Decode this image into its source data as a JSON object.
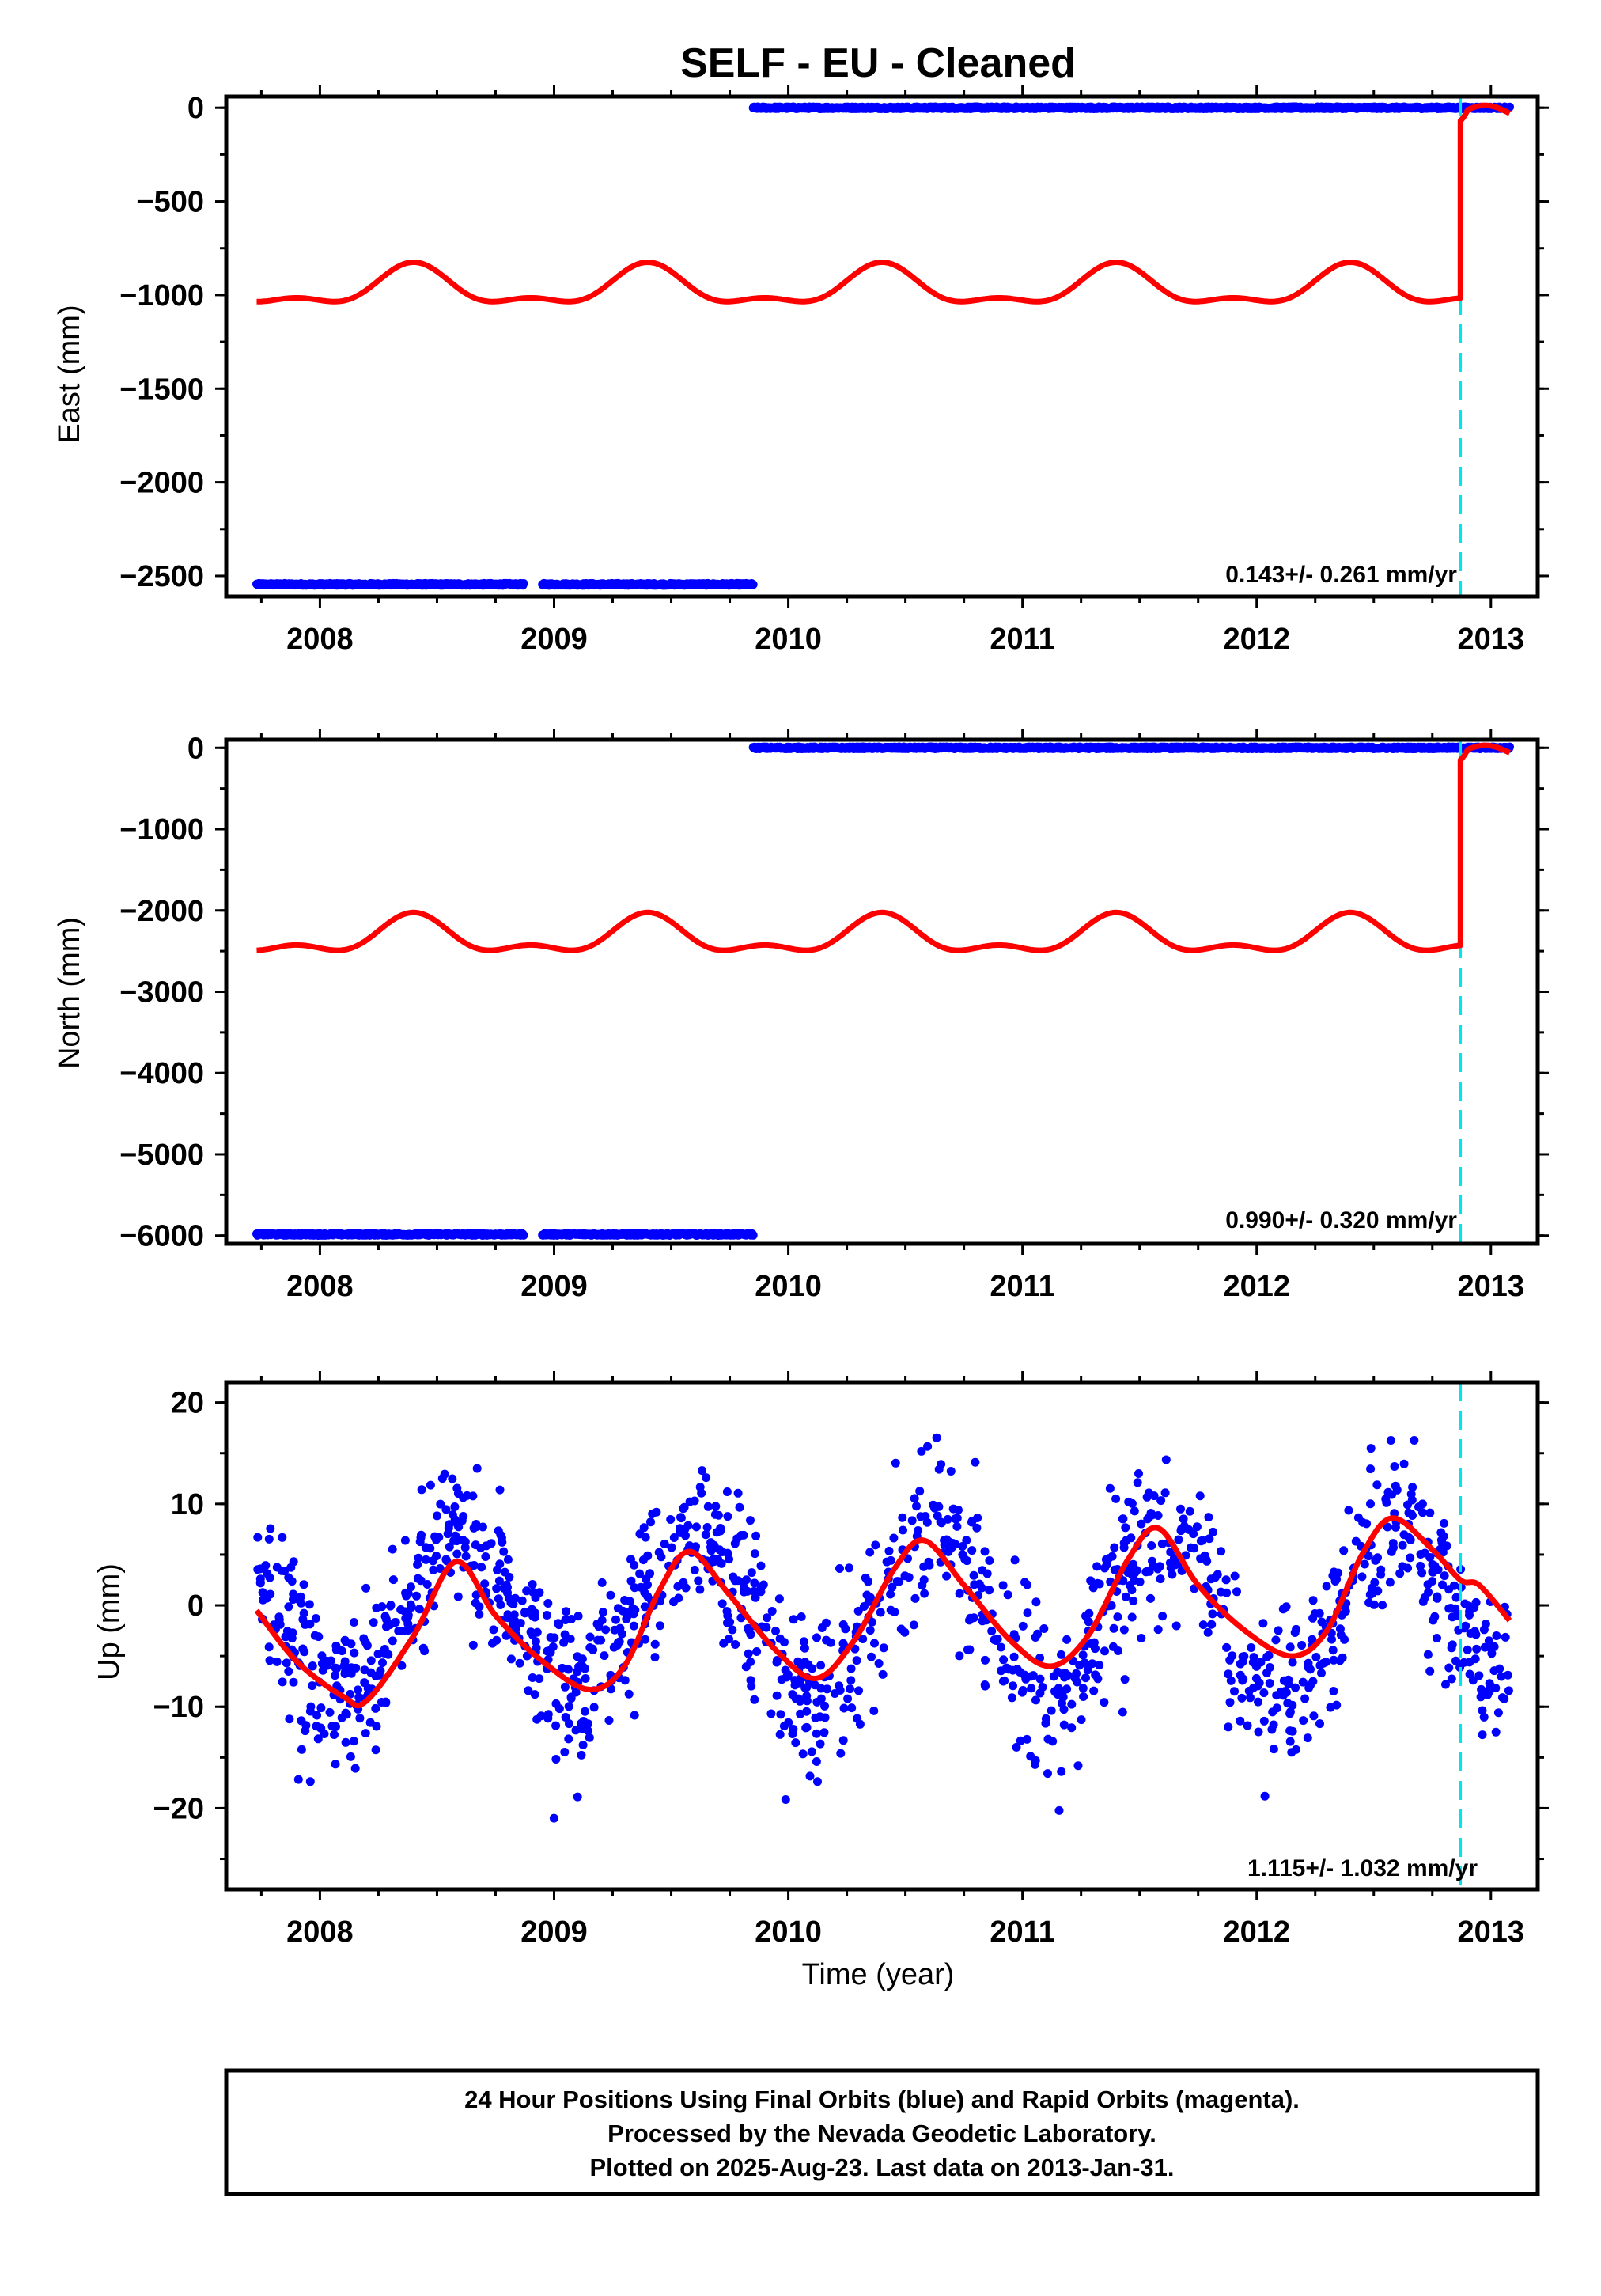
{
  "title": "SELF  - EU - Cleaned",
  "footer": {
    "lines": [
      "24 Hour Positions Using Final Orbits (blue) and Rapid Orbits (magenta).",
      "Processed by the Nevada Geodetic Laboratory.",
      "Plotted on 2025-Aug-23. Last data on 2013-Jan-31."
    ]
  },
  "colors": {
    "data_points": "#0000ff",
    "model_fit": "#ff0000",
    "event_line": "#00e5ee",
    "frame": "#000000"
  },
  "chart_data": [
    {
      "type": "scatter",
      "ylabel": "East (mm)",
      "xlabel": "",
      "xlim": [
        2007.6,
        2013.2
      ],
      "ylim": [
        -2610,
        60
      ],
      "xticks": [
        2008,
        2009,
        2010,
        2011,
        2012,
        2013
      ],
      "yticks": [
        0,
        -500,
        -1000,
        -1500,
        -2000,
        -2500
      ],
      "rate_label": "0.143+/- 0.261 mm/yr",
      "event_line_x": 2012.87,
      "series": [
        {
          "kind": "points",
          "segments": [
            {
              "x_start": 2007.73,
              "x_end": 2008.87,
              "y": -2545
            },
            {
              "x_start": 2008.95,
              "x_end": 2009.85,
              "y": -2545
            },
            {
              "x_start": 2009.85,
              "x_end": 2013.08,
              "y": 0
            }
          ]
        },
        {
          "kind": "model",
          "x_start": 2007.73,
          "x_end": 2012.87,
          "mean": -965,
          "annual_amp": 95,
          "annual_peak": 2008.4,
          "semiannual_amp": 45,
          "semiannual_peak": 2008.4,
          "post_event_mean": -30,
          "step_x": 2012.87,
          "step_from": -960,
          "step_to": -70
        }
      ]
    },
    {
      "type": "scatter",
      "ylabel": "North (mm)",
      "xlabel": "",
      "xlim": [
        2007.6,
        2013.2
      ],
      "ylim": [
        -6100,
        100
      ],
      "xticks": [
        2008,
        2009,
        2010,
        2011,
        2012,
        2013
      ],
      "yticks": [
        0,
        -1000,
        -2000,
        -3000,
        -4000,
        -5000,
        -6000
      ],
      "rate_label": "0.990+/- 0.320 mm/yr",
      "event_line_x": 2012.87,
      "series": [
        {
          "kind": "points",
          "segments": [
            {
              "x_start": 2007.73,
              "x_end": 2008.87,
              "y": -5985
            },
            {
              "x_start": 2008.95,
              "x_end": 2009.85,
              "y": -5985
            },
            {
              "x_start": 2009.85,
              "x_end": 2013.08,
              "y": 0
            }
          ]
        },
        {
          "kind": "model",
          "x_start": 2007.73,
          "x_end": 2012.87,
          "mean": -2335,
          "annual_amp": 200,
          "annual_peak": 2008.4,
          "semiannual_amp": 110,
          "semiannual_peak": 2008.4,
          "post_event_mean": -60,
          "step_x": 2012.87,
          "step_from": -2300,
          "step_to": -150
        }
      ]
    },
    {
      "type": "scatter",
      "ylabel": "Up (mm)",
      "xlabel": "Time (year)",
      "xlim": [
        2007.6,
        2013.2
      ],
      "ylim": [
        -28,
        22
      ],
      "xticks": [
        2008,
        2009,
        2010,
        2011,
        2012,
        2013
      ],
      "yticks": [
        20,
        10,
        0,
        -10,
        -20
      ],
      "rate_label": "1.115+/- 1.032 mm/yr",
      "event_line_x": 2012.87,
      "series": [
        {
          "kind": "points",
          "x_start": 2007.73,
          "x_end": 2013.08,
          "n": 1400,
          "mean": -1.0,
          "annual_amp": 8.0,
          "annual_peak": 2008.6,
          "scatter_sd": 4.0
        },
        {
          "kind": "model",
          "nodes": [
            [
              2007.73,
              -0.5
            ],
            [
              2007.9,
              -5.5
            ],
            [
              2008.1,
              -9.0
            ],
            [
              2008.2,
              -9.4
            ],
            [
              2008.4,
              -3.0
            ],
            [
              2008.58,
              4.3
            ],
            [
              2008.75,
              -1.0
            ],
            [
              2008.95,
              -5.5
            ],
            [
              2009.15,
              -8.3
            ],
            [
              2009.3,
              -6.0
            ],
            [
              2009.45,
              1.5
            ],
            [
              2009.58,
              5.3
            ],
            [
              2009.75,
              1.0
            ],
            [
              2009.95,
              -4.5
            ],
            [
              2010.12,
              -7.2
            ],
            [
              2010.28,
              -3.5
            ],
            [
              2010.45,
              3.5
            ],
            [
              2010.58,
              6.4
            ],
            [
              2010.75,
              2.0
            ],
            [
              2010.95,
              -3.5
            ],
            [
              2011.12,
              -6.0
            ],
            [
              2011.28,
              -3.0
            ],
            [
              2011.45,
              4.5
            ],
            [
              2011.58,
              7.6
            ],
            [
              2011.75,
              2.0
            ],
            [
              2011.95,
              -2.5
            ],
            [
              2012.15,
              -5.0
            ],
            [
              2012.3,
              -2.5
            ],
            [
              2012.45,
              5.0
            ],
            [
              2012.58,
              8.6
            ],
            [
              2012.75,
              5.5
            ],
            [
              2012.87,
              2.5
            ],
            [
              2012.95,
              2.0
            ],
            [
              2013.08,
              -1.5
            ]
          ]
        }
      ]
    }
  ]
}
